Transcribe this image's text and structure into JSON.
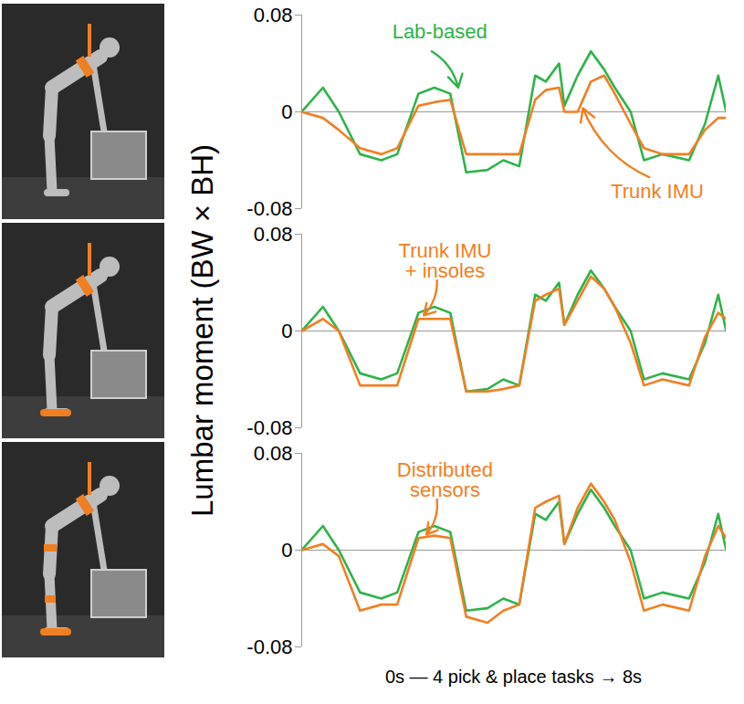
{
  "chart_data": [
    {
      "type": "line",
      "xlim": [
        0,
        8
      ],
      "ylim": [
        -0.08,
        0.08
      ],
      "yticks": [
        -0.08,
        0,
        0.08
      ],
      "tick_labels": "y",
      "grid": false,
      "x": [
        0,
        0.4,
        0.7,
        1.1,
        1.5,
        1.8,
        2.2,
        2.5,
        2.8,
        3.1,
        3.5,
        3.8,
        4.1,
        4.4,
        4.6,
        4.85,
        4.95,
        5.2,
        5.45,
        5.7,
        5.9,
        6.2,
        6.45,
        6.8,
        7.3,
        7.6,
        7.85,
        8
      ],
      "series": [
        {
          "name": "Lab-based",
          "color": "#2eb34a",
          "values": [
            0,
            0.02,
            0,
            -0.035,
            -0.04,
            -0.035,
            0.015,
            0.02,
            0.015,
            -0.05,
            -0.048,
            -0.04,
            -0.045,
            0.03,
            0.025,
            0.04,
            0.005,
            0.03,
            0.05,
            0.035,
            0.02,
            0,
            -0.04,
            -0.035,
            -0.04,
            -0.01,
            0.03,
            0
          ]
        },
        {
          "name": "Trunk IMU",
          "color": "#f07f22",
          "values": [
            0,
            -0.005,
            -0.015,
            -0.03,
            -0.035,
            -0.03,
            0.005,
            0.008,
            0.01,
            -0.035,
            -0.035,
            -0.035,
            -0.035,
            0.01,
            0.018,
            0.02,
            0,
            0,
            0.025,
            0.03,
            0.015,
            -0.01,
            -0.03,
            -0.035,
            -0.035,
            -0.015,
            -0.005,
            -0.005
          ]
        }
      ],
      "annotations": [
        {
          "text": "Lab-based",
          "color": "#2eb34a",
          "x": 2.6,
          "y": 0.066,
          "arrow_to": [
            2.95,
            0.02
          ]
        },
        {
          "text": "Trunk IMU",
          "color": "#f07f22",
          "x": 6.7,
          "y": -0.066,
          "arrow_to": [
            5.3,
            0.003
          ]
        }
      ]
    },
    {
      "type": "line",
      "xlim": [
        0,
        8
      ],
      "ylim": [
        -0.08,
        0.08
      ],
      "yticks": [
        -0.08,
        0,
        0.08
      ],
      "tick_labels": "y",
      "grid": false,
      "x": [
        0,
        0.4,
        0.7,
        1.1,
        1.5,
        1.8,
        2.2,
        2.5,
        2.8,
        3.1,
        3.5,
        3.8,
        4.1,
        4.4,
        4.6,
        4.85,
        4.95,
        5.2,
        5.45,
        5.7,
        5.9,
        6.2,
        6.45,
        6.8,
        7.3,
        7.6,
        7.85,
        8
      ],
      "series": [
        {
          "name": "Lab-based",
          "color": "#2eb34a",
          "values": [
            0,
            0.02,
            0,
            -0.035,
            -0.04,
            -0.035,
            0.015,
            0.02,
            0.015,
            -0.05,
            -0.048,
            -0.04,
            -0.045,
            0.03,
            0.025,
            0.04,
            0.005,
            0.03,
            0.05,
            0.035,
            0.02,
            0,
            -0.04,
            -0.035,
            -0.04,
            -0.01,
            0.03,
            0
          ]
        },
        {
          "name": "Trunk IMU\n+ insoles",
          "color": "#f07f22",
          "values": [
            0,
            0.01,
            0,
            -0.045,
            -0.045,
            -0.045,
            0.01,
            0.01,
            0.01,
            -0.05,
            -0.05,
            -0.048,
            -0.045,
            0.025,
            0.03,
            0.035,
            0.005,
            0.025,
            0.045,
            0.035,
            0.02,
            -0.01,
            -0.045,
            -0.04,
            -0.045,
            -0.005,
            0.015,
            0.01
          ]
        }
      ],
      "annotations": [
        {
          "text": "Trunk IMU\n+ insoles",
          "color": "#f07f22",
          "x": 2.7,
          "y": 0.058,
          "arrow_to": [
            2.3,
            0.013
          ]
        }
      ]
    },
    {
      "type": "line",
      "xlim": [
        0,
        8
      ],
      "ylim": [
        -0.08,
        0.08
      ],
      "yticks": [
        -0.08,
        0,
        0.08
      ],
      "tick_labels": "y",
      "grid": false,
      "x": [
        0,
        0.4,
        0.7,
        1.1,
        1.5,
        1.8,
        2.2,
        2.5,
        2.8,
        3.1,
        3.5,
        3.8,
        4.1,
        4.4,
        4.6,
        4.85,
        4.95,
        5.2,
        5.45,
        5.7,
        5.9,
        6.2,
        6.45,
        6.8,
        7.3,
        7.6,
        7.85,
        8
      ],
      "series": [
        {
          "name": "Lab-based",
          "color": "#2eb34a",
          "values": [
            0,
            0.02,
            0,
            -0.035,
            -0.04,
            -0.035,
            0.015,
            0.02,
            0.015,
            -0.05,
            -0.048,
            -0.04,
            -0.045,
            0.03,
            0.025,
            0.04,
            0.005,
            0.03,
            0.05,
            0.035,
            0.02,
            0,
            -0.04,
            -0.035,
            -0.04,
            -0.01,
            0.03,
            0
          ]
        },
        {
          "name": "Distributed\nsensors",
          "color": "#f07f22",
          "values": [
            0,
            0.005,
            -0.005,
            -0.05,
            -0.045,
            -0.045,
            0.01,
            0.012,
            0.01,
            -0.055,
            -0.06,
            -0.05,
            -0.045,
            0.035,
            0.04,
            0.045,
            0.005,
            0.035,
            0.055,
            0.04,
            0.025,
            -0.01,
            -0.05,
            -0.045,
            -0.05,
            -0.005,
            0.02,
            0.01
          ]
        }
      ],
      "annotations": [
        {
          "text": "Distributed\nsensors",
          "color": "#f07f22",
          "x": 2.7,
          "y": 0.058,
          "arrow_to": [
            2.35,
            0.013
          ]
        }
      ]
    }
  ],
  "shared": {
    "y_label": "Lumbar moment (BW × BH)",
    "x_label": "0s — 4 pick & place tasks → 8s"
  }
}
